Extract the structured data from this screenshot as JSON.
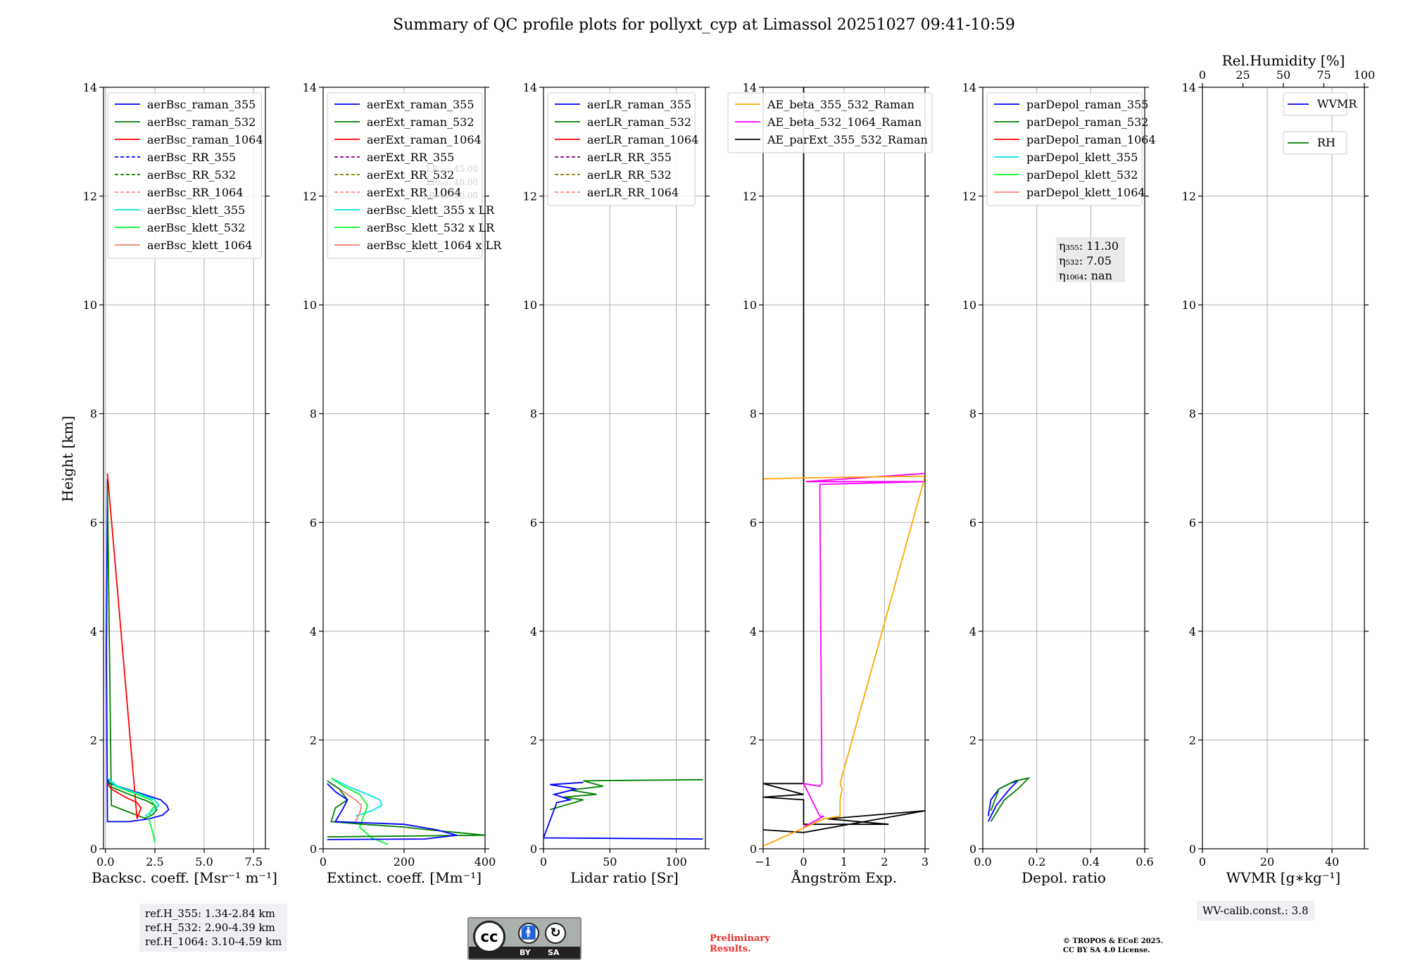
{
  "chart_data": {
    "type": "line",
    "title": "Summary of QC profile plots for pollyxt_cyp at Limassol 20251027 09:41-10:59",
    "ylabel": "Height [km]",
    "ylim": [
      0,
      14
    ],
    "yticks": [
      0,
      2,
      4,
      6,
      8,
      10,
      12,
      14
    ],
    "panels": [
      {
        "id": "backscatter",
        "xlabel": "Backsc. coeff. [Msr⁻¹ m⁻¹]",
        "xlim": [
          -0.1,
          8.1
        ],
        "xticks": [
          0,
          2.5,
          5.0,
          7.5
        ],
        "xticklabels": [
          "0.0",
          "2.5",
          "5.0",
          "7.5"
        ],
        "legend": [
          {
            "label": "aerBsc_raman_355",
            "color": "#0000ff",
            "dash": false
          },
          {
            "label": "aerBsc_raman_532",
            "color": "#008000",
            "dash": false
          },
          {
            "label": "aerBsc_raman_1064",
            "color": "#ff0000",
            "dash": false
          },
          {
            "label": "aerBsc_RR_355",
            "color": "#0000ff",
            "dash": true
          },
          {
            "label": "aerBsc_RR_532",
            "color": "#008000",
            "dash": true
          },
          {
            "label": "aerBsc_RR_1064",
            "color": "#ff8080",
            "dash": true
          },
          {
            "label": "aerBsc_klett_355",
            "color": "#00e5ee",
            "dash": false
          },
          {
            "label": "aerBsc_klett_532",
            "color": "#00ff22",
            "dash": false
          },
          {
            "label": "aerBsc_klett_1064",
            "color": "#f08070",
            "dash": false
          }
        ],
        "series": [
          {
            "name": "aerBsc_raman_355",
            "color": "#0000ff",
            "x": [
              0.1,
              0.2,
              1.5,
              2.8,
              3.1,
              3.2,
              2.9,
              2.2,
              1.2,
              0.4,
              0.1,
              0.05,
              0.1
            ],
            "y": [
              1.3,
              1.2,
              1.05,
              0.9,
              0.8,
              0.72,
              0.62,
              0.55,
              0.5,
              0.5,
              0.5,
              3.6,
              6.8
            ]
          },
          {
            "name": "aerBsc_raman_532",
            "color": "#008000",
            "x": [
              0.1,
              0.2,
              1.2,
              2.1,
              2.5,
              2.6,
              2.4,
              2.0,
              0.3,
              0.1
            ],
            "y": [
              1.25,
              1.15,
              1.0,
              0.88,
              0.8,
              0.72,
              0.63,
              0.56,
              0.8,
              6.7
            ]
          },
          {
            "name": "aerBsc_raman_1064",
            "color": "#ff0000",
            "x": [
              0.1,
              0.3,
              1.0,
              1.6,
              1.8,
              1.7,
              1.6,
              0.1
            ],
            "y": [
              1.2,
              1.1,
              0.95,
              0.85,
              0.75,
              0.65,
              0.55,
              6.9
            ]
          },
          {
            "name": "aerBsc_klett_532",
            "color": "#00ff22",
            "x": [
              0.1,
              0.5,
              1.6,
              2.3,
              2.5,
              2.3,
              2.2,
              2.4,
              2.5
            ],
            "y": [
              1.3,
              1.15,
              1.0,
              0.9,
              0.8,
              0.7,
              0.55,
              0.3,
              0.12
            ]
          },
          {
            "name": "aerBsc_klett_355",
            "color": "#00e5ee",
            "x": [
              0.1,
              0.6,
              1.8,
              2.5,
              2.7,
              2.4,
              2.0
            ],
            "y": [
              1.3,
              1.15,
              1.0,
              0.9,
              0.8,
              0.7,
              0.6
            ]
          }
        ]
      },
      {
        "id": "extinction",
        "xlabel": "Extinct. coeff. [Mm⁻¹]",
        "xlim": [
          0,
          400
        ],
        "xticks": [
          0,
          200,
          400
        ],
        "xticklabels": [
          "0",
          "200",
          "400"
        ],
        "legend": [
          {
            "label": "aerExt_raman_355",
            "color": "#0000ff",
            "dash": false
          },
          {
            "label": "aerExt_raman_532",
            "color": "#008000",
            "dash": false
          },
          {
            "label": "aerExt_raman_1064",
            "color": "#ff0000",
            "dash": false
          },
          {
            "label": "aerExt_RR_355",
            "color": "#800080",
            "dash": true
          },
          {
            "label": "aerExt_RR_532",
            "color": "#808000",
            "dash": true
          },
          {
            "label": "aerExt_RR_1064",
            "color": "#ff8080",
            "dash": true
          },
          {
            "label": "aerBsc_klett_355 x LR",
            "color": "#00e5ee",
            "dash": false
          },
          {
            "label": "aerBsc_klett_532 x LR",
            "color": "#00ff22",
            "dash": false
          },
          {
            "label": "aerBsc_klett_1064 x LR",
            "color": "#f08070",
            "dash": false
          }
        ],
        "hidden_notes": [
          "LR₃₅₅: 45.00",
          "LR₅₃₂: 40.00",
          "LR₁₀₆₄: 50.00"
        ],
        "series": [
          {
            "name": "aerBsc_klett_355 x LR",
            "color": "#00e5ee",
            "x": [
              20,
              60,
              110,
              140,
              145,
              120,
              80
            ],
            "y": [
              1.3,
              1.15,
              1.0,
              0.9,
              0.8,
              0.7,
              0.6
            ]
          },
          {
            "name": "aerBsc_klett_532 x LR",
            "color": "#00ff22",
            "x": [
              20,
              50,
              90,
              110,
              100,
              90,
              120,
              160
            ],
            "y": [
              1.3,
              1.15,
              1.0,
              0.8,
              0.6,
              0.4,
              0.2,
              0.08
            ]
          },
          {
            "name": "aerBsc_klett_1064 x LR",
            "color": "#f08070",
            "x": [
              20,
              50,
              80,
              95,
              90,
              80
            ],
            "y": [
              1.2,
              1.05,
              0.9,
              0.8,
              0.65,
              0.5
            ]
          },
          {
            "name": "aerExt_raman_532",
            "color": "#008000",
            "x": [
              10,
              40,
              60,
              30,
              20,
              100,
              200,
              260,
              330,
              400,
              10
            ],
            "y": [
              1.25,
              1.1,
              0.9,
              0.75,
              0.5,
              0.45,
              0.4,
              0.35,
              0.3,
              0.25,
              0.22
            ]
          },
          {
            "name": "aerExt_raman_355",
            "color": "#0000ff",
            "x": [
              10,
              30,
              60,
              50,
              30,
              200,
              280,
              330,
              250,
              10
            ],
            "y": [
              1.2,
              1.05,
              0.9,
              0.75,
              0.5,
              0.45,
              0.35,
              0.25,
              0.18,
              0.17
            ]
          }
        ]
      },
      {
        "id": "lidarratio",
        "xlabel": "Lidar ratio [Sr]",
        "xlim": [
          0,
          122
        ],
        "xticks": [
          0,
          50,
          100
        ],
        "xticklabels": [
          "0",
          "50",
          "100"
        ],
        "legend": [
          {
            "label": "aerLR_raman_355",
            "color": "#0000ff",
            "dash": false
          },
          {
            "label": "aerLR_raman_532",
            "color": "#008000",
            "dash": false
          },
          {
            "label": "aerLR_raman_1064",
            "color": "#ff0000",
            "dash": false
          },
          {
            "label": "aerLR_RR_355",
            "color": "#800080",
            "dash": true
          },
          {
            "label": "aerLR_RR_532",
            "color": "#808000",
            "dash": true
          },
          {
            "label": "aerLR_RR_1064",
            "color": "#ff8080",
            "dash": true
          }
        ],
        "series": [
          {
            "name": "aerLR_raman_532",
            "color": "#008000",
            "x": [
              120,
              30,
              45,
              20,
              40,
              15,
              30,
              5
            ],
            "y": [
              1.27,
              1.25,
              1.15,
              1.08,
              1.0,
              0.95,
              0.9,
              0.72
            ]
          },
          {
            "name": "aerLR_raman_355",
            "color": "#0000ff",
            "x": [
              30,
              5,
              25,
              8,
              20,
              10,
              0,
              120
            ],
            "y": [
              1.22,
              1.18,
              1.1,
              1.0,
              0.9,
              0.85,
              0.2,
              0.18
            ]
          }
        ]
      },
      {
        "id": "angstrom",
        "xlabel": "Ångström Exp.",
        "xlim": [
          -1,
          3
        ],
        "xticks": [
          -1,
          0,
          1,
          2,
          3
        ],
        "xticklabels": [
          "−1",
          "0",
          "1",
          "2",
          "3"
        ],
        "legend": [
          {
            "label": "AE_beta_355_532_Raman",
            "color": "#ffa500",
            "dash": false
          },
          {
            "label": "AE_beta_532_1064_Raman",
            "color": "#ff00ff",
            "dash": false
          },
          {
            "label": "AE_parExt_355_532_Raman",
            "color": "#000000",
            "dash": false
          }
        ],
        "series": [
          {
            "name": "AE_parExt_355_532_Raman",
            "color": "#000000",
            "x": [
              0,
              0,
              -1,
              0,
              -1,
              0,
              0,
              2.1,
              0.6,
              3,
              0,
              -1
            ],
            "y": [
              14,
              1.2,
              1.2,
              1.0,
              0.95,
              0.9,
              0.45,
              0.45,
              0.55,
              0.7,
              0.3,
              0.35
            ]
          },
          {
            "name": "AE_beta_532_1064_Raman",
            "color": "#ff00ff",
            "x": [
              3,
              0.05,
              3,
              0.4,
              0.45,
              0.4,
              0,
              0.4,
              0.5,
              0
            ],
            "y": [
              6.9,
              6.75,
              6.75,
              6.7,
              1.2,
              1.15,
              1.2,
              0.6,
              0.6,
              0.4
            ]
          },
          {
            "name": "AE_beta_355_532_Raman",
            "color": "#ffa500",
            "x": [
              -1,
              0.1,
              3,
              0.9,
              0.95,
              0.9,
              0.9,
              0.5,
              -1
            ],
            "y": [
              6.8,
              6.82,
              6.85,
              1.2,
              1.1,
              0.9,
              0.6,
              0.55,
              0.05
            ]
          }
        ]
      },
      {
        "id": "depol",
        "xlabel": "Depol. ratio",
        "xlim": [
          0,
          0.6
        ],
        "xticks": [
          0,
          0.2,
          0.4,
          0.6
        ],
        "xticklabels": [
          "0.0",
          "0.2",
          "0.4",
          "0.6"
        ],
        "legend": [
          {
            "label": "parDepol_raman_355",
            "color": "#0000ff",
            "dash": false
          },
          {
            "label": "parDepol_raman_532",
            "color": "#008000",
            "dash": false
          },
          {
            "label": "parDepol_raman_1064",
            "color": "#ff0000",
            "dash": false
          },
          {
            "label": "parDepol_klett_355",
            "color": "#00e5ee",
            "dash": false
          },
          {
            "label": "parDepol_klett_532",
            "color": "#00ff22",
            "dash": false
          },
          {
            "label": "parDepol_klett_1064",
            "color": "#ff8080",
            "dash": false
          }
        ],
        "eta_notes": [
          "η₃₅₅: 11.30",
          "η₅₃₂: 7.05",
          "η₁₀₆₄: nan"
        ],
        "series": [
          {
            "name": "parDepol_raman_355",
            "color": "#0000ff",
            "x": [
              0.02,
              0.05,
              0.1,
              0.13,
              0.1,
              0.06,
              0.03,
              0.02
            ],
            "y": [
              0.5,
              0.8,
              1.1,
              1.25,
              1.2,
              1.1,
              0.9,
              0.6
            ]
          },
          {
            "name": "parDepol_raman_532",
            "color": "#008000",
            "x": [
              0.03,
              0.08,
              0.13,
              0.17,
              0.12,
              0.06,
              0.03
            ],
            "y": [
              0.5,
              0.9,
              1.1,
              1.3,
              1.25,
              1.1,
              0.7
            ]
          }
        ]
      },
      {
        "id": "wv",
        "xlabel": "WVMR [g∗kg⁻¹]",
        "xlim": [
          0,
          50
        ],
        "xticks": [
          0,
          20,
          40
        ],
        "xticklabels": [
          "0",
          "20",
          "40"
        ],
        "top_xlabel": "Rel.Humidity [%]",
        "top_xlim": [
          0,
          100
        ],
        "top_xticks": [
          0,
          25,
          50,
          75,
          100
        ],
        "top_xticklabels": [
          "0",
          "25",
          "50",
          "75",
          "100"
        ],
        "legend": [
          {
            "label": "WVMR",
            "color": "#0000ff",
            "dash": false
          },
          {
            "label": "RH",
            "color": "#008000",
            "dash": false
          }
        ],
        "series": []
      }
    ]
  },
  "info": {
    "ref_lines": [
      "ref.H_355: 1.34-2.84 km",
      "ref.H_532: 2.90-4.39 km",
      "ref.H_1064: 3.10-4.59 km"
    ],
    "wv_calib": "WV-calib.const.: 3.8",
    "preliminary": [
      "Preliminary",
      "Results."
    ],
    "copyright": [
      "© TROPOS & ECoE 2025.",
      "CC BY SA 4.0 License."
    ],
    "license_badge": {
      "cc": "cc",
      "by": "BY",
      "sa": "SA"
    }
  }
}
